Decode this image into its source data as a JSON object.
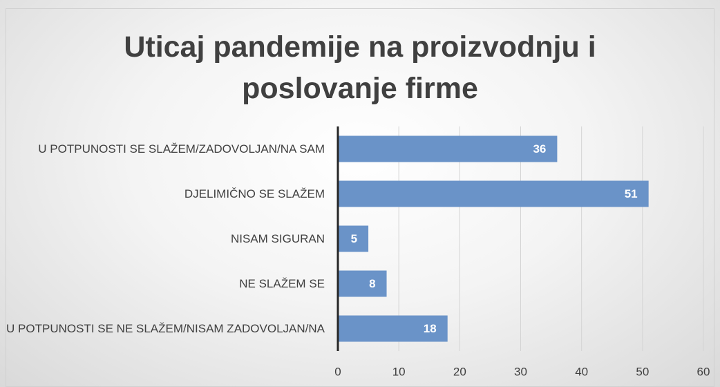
{
  "chart_data": {
    "type": "bar",
    "orientation": "horizontal",
    "title": "Uticaj pandemije na proizvodnju i poslovanje firme",
    "categories": [
      "U POTPUNOSTI SE SLAŽEM/ZADOVOLJAN/NA SAM",
      "DJELIMIČNO SE SLAŽEM",
      "NISAM SIGURAN",
      "NE SLAŽEM SE",
      "U POTPUNOSTI SE NE SLAŽEM/NISAM ZADOVOLJAN/NA"
    ],
    "values": [
      36,
      51,
      5,
      8,
      18
    ],
    "color": "#6a93c8",
    "xlim": [
      0,
      60
    ],
    "xticks": [
      0,
      10,
      20,
      30,
      40,
      50,
      60
    ],
    "grid": true
  }
}
